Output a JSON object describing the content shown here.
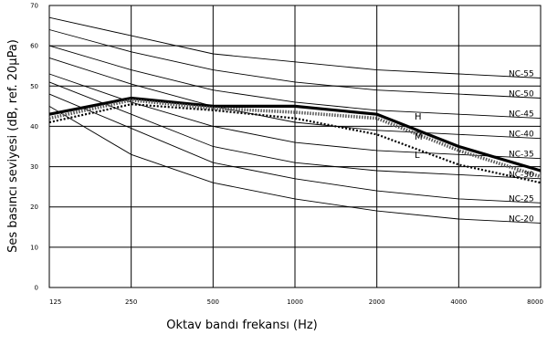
{
  "chart_data": {
    "type": "line",
    "xlabel": "Oktav bandı frekansı (Hz)",
    "ylabel": "Ses basıncı seviyesi (dB, ref. 20μPa)",
    "x": [
      "125",
      "250",
      "500",
      "1000",
      "2000",
      "4000",
      "8000"
    ],
    "ylim": [
      0,
      70
    ],
    "yticks": [
      0,
      10,
      20,
      30,
      40,
      50,
      60,
      70
    ],
    "grid": true,
    "nc_curves": [
      {
        "name": "NC-55",
        "values": [
          67,
          62.5,
          58,
          56,
          54,
          53,
          52
        ]
      },
      {
        "name": "NC-50",
        "values": [
          64,
          58.5,
          54,
          51,
          49,
          48,
          47
        ]
      },
      {
        "name": "NC-45",
        "values": [
          60,
          54,
          49,
          46,
          44,
          43,
          42
        ]
      },
      {
        "name": "NC-40",
        "values": [
          57,
          50.5,
          45,
          41,
          39,
          38,
          37
        ]
      },
      {
        "name": "NC-35",
        "values": [
          53,
          46,
          40,
          36,
          34,
          33,
          32
        ]
      },
      {
        "name": "NC-30",
        "values": [
          51,
          43,
          35,
          31,
          29,
          28,
          27
        ]
      },
      {
        "name": "NC-25",
        "values": [
          48,
          39.5,
          31,
          27,
          24,
          22,
          21
        ]
      },
      {
        "name": "NC-20",
        "values": [
          45,
          33,
          26,
          22,
          19,
          17,
          16
        ]
      }
    ],
    "series": [
      {
        "name": "H",
        "values": [
          43,
          47,
          45,
          45,
          43,
          35,
          29
        ]
      },
      {
        "name": "M",
        "values": [
          42,
          46.5,
          44.5,
          43.5,
          42,
          34,
          27.5
        ]
      },
      {
        "name": "L",
        "values": [
          41,
          45.5,
          44,
          42,
          38,
          30.5,
          26
        ]
      }
    ]
  }
}
